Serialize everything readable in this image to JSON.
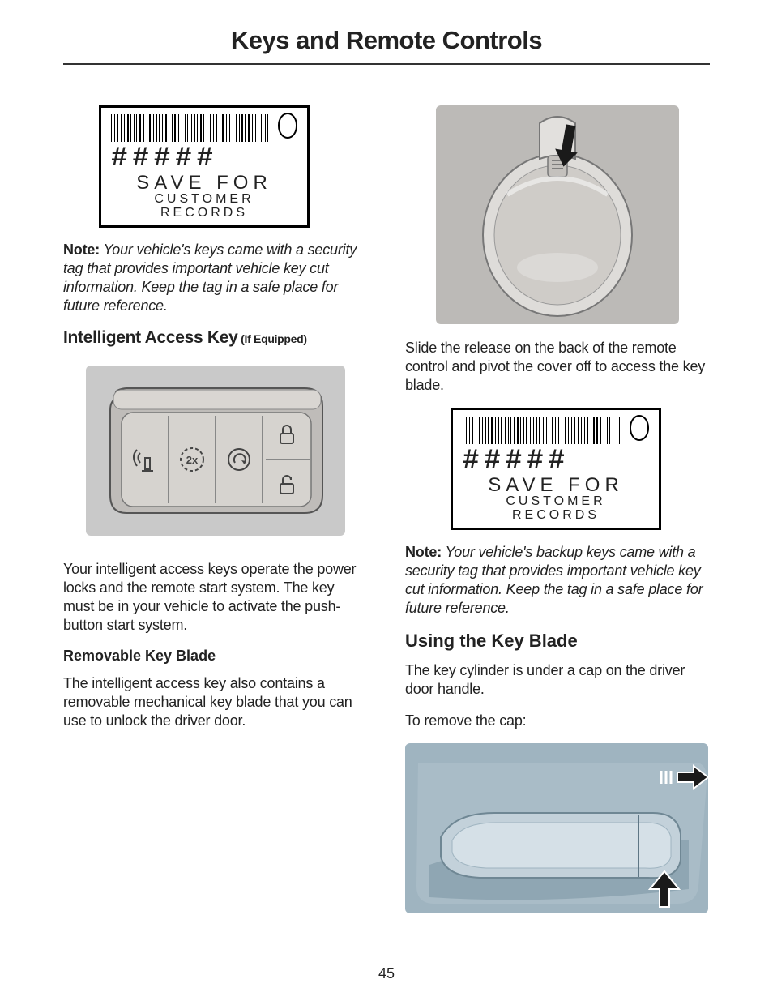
{
  "chapter_title": "Keys and Remote Controls",
  "page_number": "45",
  "tag": {
    "hashes": "#####",
    "line1": "SAVE  FOR",
    "line2": "CUSTOMER  RECORDS"
  },
  "left": {
    "note1_lead": "Note:",
    "note1_body": " Your vehicle's keys came with a security tag that provides important vehicle key cut information. Keep the tag in a safe place for future reference.",
    "h2": "Intelligent Access Key",
    "h2_sub": " (If Equipped)",
    "para_access": "Your intelligent access keys operate the power locks and the remote start system. The key must be in your vehicle to activate the push-button start system.",
    "h3": "Removable Key Blade",
    "para_blade": "The intelligent access key also contains a removable mechanical key blade that you can use to unlock the driver door."
  },
  "right": {
    "para_slide": "Slide the release on the back of the remote control and pivot the cover off to access the key blade.",
    "note2_lead": "Note:",
    "note2_body": " Your vehicle's backup keys came with a security tag that provides important vehicle key cut information. Keep the tag in a safe place for future reference.",
    "h2b": "Using the Key Blade",
    "para_cyl": "The key cylinder is under a cap on the driver door handle.",
    "para_remove": "To remove the cap:"
  },
  "style": {
    "bg": "#ffffff",
    "text": "#222222",
    "rule": "#333333",
    "fob_bg": "#c9c9c9",
    "fob_body": "#bfbcb9",
    "fob_inner": "#d6d3cf",
    "remote_bg": "#bcbab7",
    "remote_body": "#e2e0dd",
    "arrow": "#1a1a1a",
    "handle_bg": "#a2b6c1",
    "handle_body": "#b8c8d1"
  },
  "barcode_widths": [
    2,
    1,
    1,
    3,
    1,
    2,
    1,
    1,
    2,
    1,
    3,
    1,
    1,
    2,
    1,
    1,
    1,
    2,
    3,
    1,
    1,
    2,
    1,
    1,
    3,
    1,
    2,
    1,
    1,
    2,
    1,
    1,
    1,
    3,
    2,
    1,
    1,
    1,
    2,
    1,
    3,
    1,
    2,
    1,
    1,
    2,
    1,
    1,
    1,
    3,
    1,
    2,
    1,
    1,
    2,
    1,
    3,
    1,
    1,
    2,
    1,
    1,
    2,
    1,
    3,
    1,
    1,
    2,
    1,
    1,
    2,
    3,
    1,
    1,
    2,
    1,
    1,
    2,
    1,
    3,
    1,
    1,
    2,
    1,
    2,
    1,
    3,
    1,
    1,
    2,
    1,
    1,
    2,
    1,
    1,
    3,
    2,
    1,
    1,
    2
  ]
}
